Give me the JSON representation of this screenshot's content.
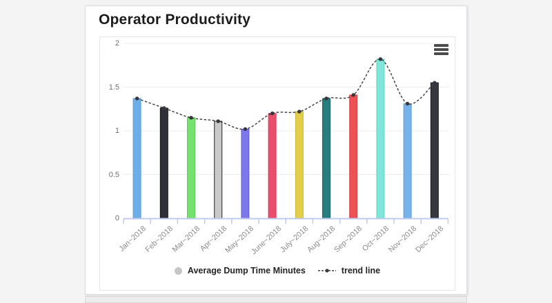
{
  "header": {
    "title": "Operator Productivity"
  },
  "chart_data": {
    "type": "bar",
    "title": "Operator Productivity",
    "categories": [
      "Jan~2018",
      "Feb~2018",
      "Mar~2018",
      "Apr~2018",
      "May~2018",
      "June~2018",
      "July~2018",
      "Aug~2018",
      "Sep~2018",
      "Oct~2018",
      "Nov~2018",
      "Dec~2018"
    ],
    "series": [
      {
        "name": "Average Dump Time Minutes",
        "type": "column",
        "values": [
          1.37,
          1.26,
          1.15,
          1.11,
          1.02,
          1.2,
          1.22,
          1.37,
          1.41,
          1.82,
          1.31,
          1.55
        ]
      },
      {
        "name": "trend line",
        "type": "spline",
        "values": [
          1.37,
          1.26,
          1.15,
          1.11,
          1.02,
          1.2,
          1.22,
          1.37,
          1.41,
          1.82,
          1.31,
          1.55
        ]
      }
    ],
    "ylim": [
      0,
      2
    ],
    "ytick_labels": [
      "0",
      "0.5",
      "1",
      "1.5",
      "2"
    ],
    "grid": true,
    "legend_position": "bottom",
    "bar_colors": [
      "#6CAFE8",
      "#303138",
      "#75E16E",
      "#C9C9C9",
      "#7C77EB",
      "#E94F6D",
      "#E2CE48",
      "#267F7E",
      "#EF5053",
      "#7FE6D9",
      "#76B3EA",
      "#37373F"
    ],
    "bar_stroke_colors": [
      "#5A9BD4",
      "#121216",
      "#59CC55",
      "#232323",
      "#655FD8",
      "#D43A5B",
      "#C8B534",
      "#175F5F",
      "#DC3B41",
      "#63D2C4",
      "#5C9FD8",
      "#18181D"
    ],
    "trend_line_color": "#454545",
    "trend_marker_color": "#36363b",
    "axis_line_color": "#bfcbec",
    "gridline_color": "#ececec",
    "legend_series_marker_color": "#c6c6c6",
    "menu_icon": "hamburger-icon"
  }
}
